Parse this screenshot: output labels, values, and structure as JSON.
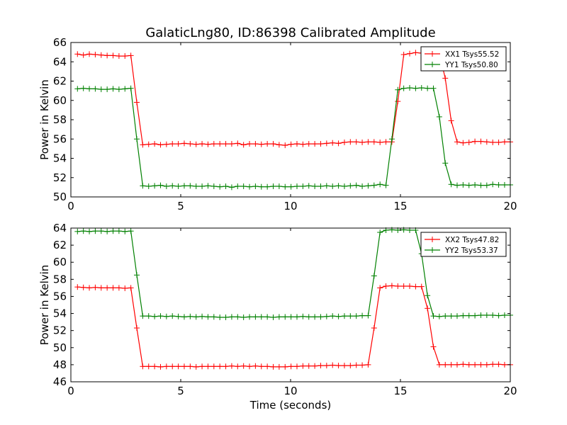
{
  "title": "GalaticLng80, ID:86398 Calibrated Amplitude",
  "colors": {
    "series1": "#ff0000",
    "series2": "#008000",
    "axis": "#000000",
    "background": "#ffffff"
  },
  "chart_data": [
    {
      "type": "line",
      "title": "GalaticLng80, ID:86398 Calibrated Amplitude",
      "xlabel": "",
      "ylabel": "Power in Kelvin",
      "xlim": [
        0,
        20
      ],
      "ylim": [
        50,
        66
      ],
      "xticks": [
        "0",
        "5",
        "10",
        "15",
        "20"
      ],
      "yticks": [
        "50",
        "52",
        "54",
        "56",
        "58",
        "60",
        "62",
        "64",
        "66"
      ],
      "grid": false,
      "legend_position": "top-right",
      "x": [
        0.3,
        0.57,
        0.84,
        1.11,
        1.38,
        1.65,
        1.92,
        2.19,
        2.46,
        2.73,
        3.0,
        3.27,
        3.54,
        3.81,
        4.08,
        4.35,
        4.62,
        4.89,
        5.16,
        5.43,
        5.7,
        5.97,
        6.24,
        6.51,
        6.78,
        7.05,
        7.32,
        7.59,
        7.86,
        8.13,
        8.4,
        8.67,
        8.94,
        9.21,
        9.48,
        9.75,
        10.02,
        10.29,
        10.56,
        10.83,
        11.1,
        11.37,
        11.64,
        11.91,
        12.18,
        12.45,
        12.72,
        12.99,
        13.26,
        13.53,
        13.8,
        14.07,
        14.34,
        14.61,
        14.88,
        15.15,
        15.42,
        15.69,
        15.96,
        16.23,
        16.5,
        16.77,
        17.04,
        17.31,
        17.58,
        17.85,
        18.12,
        18.39,
        18.66,
        18.93,
        19.2,
        19.47,
        19.74,
        20.0
      ],
      "series": [
        {
          "name": "XX1 Tsys55.52",
          "color": "#ff0000",
          "values": [
            64.8,
            64.7,
            64.8,
            64.75,
            64.7,
            64.65,
            64.65,
            64.6,
            64.6,
            64.65,
            59.8,
            55.4,
            55.45,
            55.5,
            55.4,
            55.45,
            55.5,
            55.5,
            55.55,
            55.5,
            55.45,
            55.5,
            55.45,
            55.5,
            55.5,
            55.5,
            55.5,
            55.55,
            55.4,
            55.5,
            55.5,
            55.45,
            55.5,
            55.5,
            55.4,
            55.35,
            55.45,
            55.5,
            55.45,
            55.5,
            55.5,
            55.5,
            55.55,
            55.6,
            55.55,
            55.65,
            55.7,
            55.7,
            55.65,
            55.7,
            55.7,
            55.65,
            55.7,
            55.7,
            59.9,
            64.75,
            64.85,
            64.95,
            64.9,
            64.95,
            64.85,
            64.85,
            62.3,
            57.9,
            55.7,
            55.6,
            55.65,
            55.75,
            55.75,
            55.7,
            55.65,
            55.65,
            55.7,
            55.7
          ]
        },
        {
          "name": "YY1 Tsys50.80",
          "color": "#008000",
          "values": [
            61.2,
            61.25,
            61.2,
            61.2,
            61.15,
            61.15,
            61.2,
            61.15,
            61.2,
            61.25,
            56.0,
            51.15,
            51.1,
            51.15,
            51.2,
            51.1,
            51.15,
            51.1,
            51.15,
            51.15,
            51.1,
            51.1,
            51.15,
            51.1,
            51.05,
            51.1,
            51.0,
            51.1,
            51.1,
            51.05,
            51.1,
            51.05,
            51.05,
            51.1,
            51.1,
            51.05,
            51.05,
            51.1,
            51.1,
            51.15,
            51.1,
            51.1,
            51.15,
            51.1,
            51.15,
            51.1,
            51.15,
            51.2,
            51.1,
            51.15,
            51.2,
            51.3,
            51.2,
            56.0,
            61.1,
            61.25,
            61.3,
            61.25,
            61.3,
            61.25,
            61.25,
            58.3,
            53.5,
            51.3,
            51.2,
            51.25,
            51.2,
            51.25,
            51.2,
            51.2,
            51.3,
            51.25,
            51.25,
            51.25
          ]
        }
      ]
    },
    {
      "type": "line",
      "title": "",
      "xlabel": "Time (seconds)",
      "ylabel": "Power in Kelvin",
      "xlim": [
        0,
        20
      ],
      "ylim": [
        46,
        64
      ],
      "xticks": [
        "0",
        "5",
        "10",
        "15",
        "20"
      ],
      "yticks": [
        "46",
        "48",
        "50",
        "52",
        "54",
        "56",
        "58",
        "60",
        "62",
        "64"
      ],
      "grid": false,
      "legend_position": "top-right",
      "x": [
        0.3,
        0.57,
        0.84,
        1.11,
        1.38,
        1.65,
        1.92,
        2.19,
        2.46,
        2.73,
        3.0,
        3.27,
        3.54,
        3.81,
        4.08,
        4.35,
        4.62,
        4.89,
        5.16,
        5.43,
        5.7,
        5.97,
        6.24,
        6.51,
        6.78,
        7.05,
        7.32,
        7.59,
        7.86,
        8.13,
        8.4,
        8.67,
        8.94,
        9.21,
        9.48,
        9.75,
        10.02,
        10.29,
        10.56,
        10.83,
        11.1,
        11.37,
        11.64,
        11.91,
        12.18,
        12.45,
        12.72,
        12.99,
        13.26,
        13.53,
        13.8,
        14.07,
        14.34,
        14.61,
        14.88,
        15.15,
        15.42,
        15.69,
        15.96,
        16.23,
        16.5,
        16.77,
        17.04,
        17.31,
        17.58,
        17.85,
        18.12,
        18.39,
        18.66,
        18.93,
        19.2,
        19.47,
        19.74,
        20.0
      ],
      "series": [
        {
          "name": "XX2 Tsys47.82",
          "color": "#ff0000",
          "values": [
            57.1,
            57.05,
            57.0,
            57.05,
            57.0,
            57.0,
            57.0,
            57.0,
            56.95,
            57.0,
            52.3,
            47.8,
            47.8,
            47.8,
            47.75,
            47.8,
            47.8,
            47.8,
            47.8,
            47.8,
            47.75,
            47.8,
            47.8,
            47.8,
            47.8,
            47.8,
            47.85,
            47.8,
            47.85,
            47.8,
            47.85,
            47.8,
            47.8,
            47.75,
            47.75,
            47.75,
            47.8,
            47.8,
            47.85,
            47.85,
            47.85,
            47.9,
            47.9,
            47.95,
            47.9,
            47.9,
            47.9,
            47.95,
            47.95,
            48.0,
            52.3,
            57.0,
            57.2,
            57.25,
            57.2,
            57.2,
            57.2,
            57.15,
            57.15,
            54.6,
            50.1,
            48.0,
            48.0,
            48.0,
            48.0,
            48.05,
            48.0,
            48.0,
            48.0,
            48.0,
            48.05,
            48.05,
            48.0,
            48.0
          ]
        },
        {
          "name": "YY2 Tsys53.37",
          "color": "#008000",
          "values": [
            63.6,
            63.65,
            63.6,
            63.65,
            63.65,
            63.6,
            63.65,
            63.65,
            63.6,
            63.65,
            58.5,
            53.7,
            53.7,
            53.65,
            53.7,
            53.65,
            53.7,
            53.65,
            53.6,
            53.65,
            53.6,
            53.65,
            53.6,
            53.6,
            53.55,
            53.55,
            53.6,
            53.6,
            53.55,
            53.6,
            53.6,
            53.6,
            53.6,
            53.55,
            53.6,
            53.6,
            53.6,
            53.6,
            53.65,
            53.6,
            53.6,
            53.6,
            53.65,
            53.7,
            53.65,
            53.7,
            53.7,
            53.7,
            53.75,
            53.75,
            58.4,
            63.5,
            63.75,
            63.8,
            63.75,
            63.8,
            63.75,
            63.75,
            61.0,
            56.1,
            53.7,
            53.65,
            53.7,
            53.7,
            53.7,
            53.75,
            53.75,
            53.75,
            53.8,
            53.8,
            53.8,
            53.75,
            53.8,
            53.8
          ]
        }
      ]
    }
  ]
}
